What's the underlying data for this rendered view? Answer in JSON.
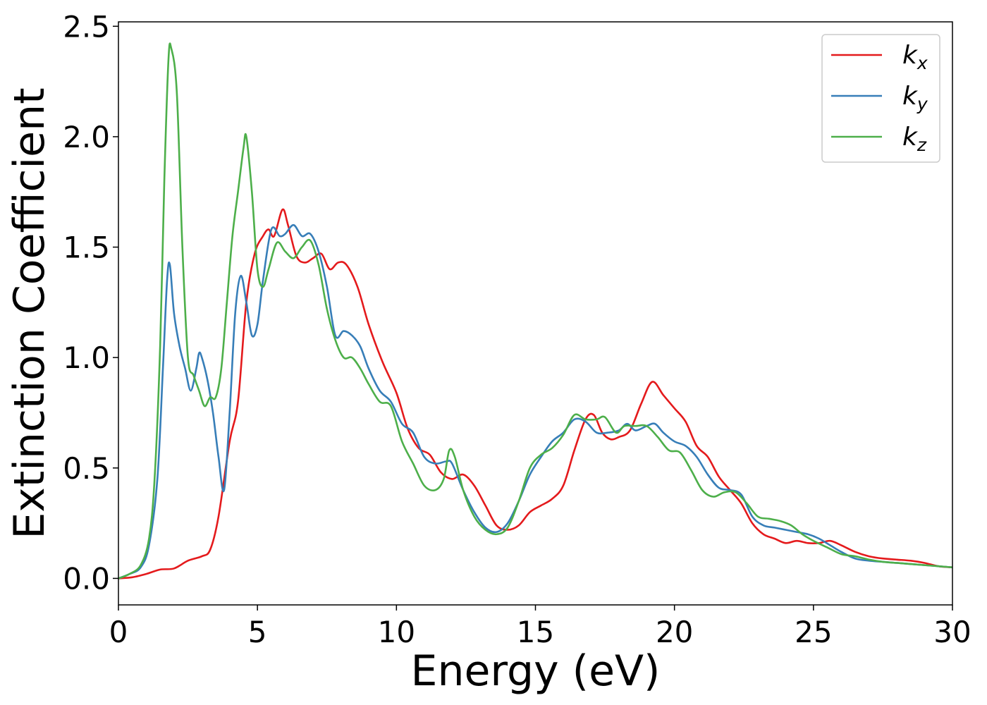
{
  "chart_data": {
    "type": "line",
    "title": "",
    "xlabel": "Energy (eV)",
    "ylabel": "Extinction Coefficient",
    "xlim": [
      0,
      30
    ],
    "ylim": [
      -0.12,
      2.52
    ],
    "x_ticks": [
      0,
      5,
      10,
      15,
      20,
      25,
      30
    ],
    "x_tick_labels": [
      "0",
      "5",
      "10",
      "15",
      "20",
      "25",
      "30"
    ],
    "y_ticks": [
      0.0,
      0.5,
      1.0,
      1.5,
      2.0,
      2.5
    ],
    "y_tick_labels": [
      "0.0",
      "0.5",
      "1.0",
      "1.5",
      "2.0",
      "2.5"
    ],
    "grid": false,
    "legend_position": "top-right",
    "series": [
      {
        "name": "k_x",
        "label_main": "k",
        "label_sub": "x",
        "color": "#e41a1c",
        "points": [
          [
            0,
            0
          ],
          [
            0.5,
            0.005
          ],
          [
            1.0,
            0.02
          ],
          [
            1.5,
            0.04
          ],
          [
            2.0,
            0.045
          ],
          [
            2.5,
            0.08
          ],
          [
            3.0,
            0.1
          ],
          [
            3.3,
            0.13
          ],
          [
            3.6,
            0.28
          ],
          [
            4.0,
            0.62
          ],
          [
            4.3,
            0.8
          ],
          [
            4.6,
            1.25
          ],
          [
            4.9,
            1.47
          ],
          [
            5.2,
            1.55
          ],
          [
            5.4,
            1.58
          ],
          [
            5.6,
            1.55
          ],
          [
            5.9,
            1.67
          ],
          [
            6.1,
            1.6
          ],
          [
            6.4,
            1.46
          ],
          [
            6.7,
            1.43
          ],
          [
            7.0,
            1.45
          ],
          [
            7.3,
            1.47
          ],
          [
            7.6,
            1.4
          ],
          [
            7.9,
            1.43
          ],
          [
            8.2,
            1.42
          ],
          [
            8.6,
            1.32
          ],
          [
            9.0,
            1.15
          ],
          [
            9.5,
            0.98
          ],
          [
            10.0,
            0.84
          ],
          [
            10.4,
            0.68
          ],
          [
            10.8,
            0.59
          ],
          [
            11.2,
            0.56
          ],
          [
            11.6,
            0.48
          ],
          [
            12.0,
            0.45
          ],
          [
            12.4,
            0.47
          ],
          [
            12.8,
            0.42
          ],
          [
            13.2,
            0.33
          ],
          [
            13.6,
            0.24
          ],
          [
            14.0,
            0.22
          ],
          [
            14.4,
            0.24
          ],
          [
            14.8,
            0.3
          ],
          [
            15.2,
            0.33
          ],
          [
            15.6,
            0.36
          ],
          [
            16.0,
            0.42
          ],
          [
            16.4,
            0.58
          ],
          [
            16.8,
            0.72
          ],
          [
            17.1,
            0.74
          ],
          [
            17.4,
            0.66
          ],
          [
            17.7,
            0.63
          ],
          [
            18.0,
            0.64
          ],
          [
            18.4,
            0.67
          ],
          [
            18.8,
            0.79
          ],
          [
            19.2,
            0.89
          ],
          [
            19.6,
            0.83
          ],
          [
            20.0,
            0.77
          ],
          [
            20.4,
            0.71
          ],
          [
            20.8,
            0.6
          ],
          [
            21.2,
            0.55
          ],
          [
            21.6,
            0.46
          ],
          [
            22.0,
            0.4
          ],
          [
            22.4,
            0.34
          ],
          [
            22.8,
            0.25
          ],
          [
            23.2,
            0.2
          ],
          [
            23.6,
            0.18
          ],
          [
            24.0,
            0.16
          ],
          [
            24.4,
            0.17
          ],
          [
            24.8,
            0.16
          ],
          [
            25.2,
            0.16
          ],
          [
            25.6,
            0.17
          ],
          [
            26.0,
            0.15
          ],
          [
            26.5,
            0.12
          ],
          [
            27.0,
            0.1
          ],
          [
            27.5,
            0.09
          ],
          [
            28.0,
            0.085
          ],
          [
            28.5,
            0.08
          ],
          [
            29.0,
            0.07
          ],
          [
            29.5,
            0.055
          ],
          [
            30.0,
            0.05
          ]
        ]
      },
      {
        "name": "k_y",
        "label_main": "k",
        "label_sub": "y",
        "color": "#377eb8",
        "points": [
          [
            0,
            0
          ],
          [
            0.4,
            0.02
          ],
          [
            0.8,
            0.05
          ],
          [
            1.1,
            0.15
          ],
          [
            1.4,
            0.45
          ],
          [
            1.6,
            0.95
          ],
          [
            1.75,
            1.35
          ],
          [
            1.85,
            1.42
          ],
          [
            2.0,
            1.2
          ],
          [
            2.2,
            1.05
          ],
          [
            2.4,
            0.95
          ],
          [
            2.6,
            0.85
          ],
          [
            2.8,
            0.95
          ],
          [
            2.9,
            1.02
          ],
          [
            3.0,
            1.0
          ],
          [
            3.2,
            0.9
          ],
          [
            3.4,
            0.75
          ],
          [
            3.6,
            0.55
          ],
          [
            3.8,
            0.4
          ],
          [
            4.0,
            0.75
          ],
          [
            4.2,
            1.2
          ],
          [
            4.4,
            1.37
          ],
          [
            4.6,
            1.25
          ],
          [
            4.8,
            1.1
          ],
          [
            5.0,
            1.15
          ],
          [
            5.2,
            1.35
          ],
          [
            5.5,
            1.58
          ],
          [
            5.8,
            1.55
          ],
          [
            6.0,
            1.56
          ],
          [
            6.3,
            1.6
          ],
          [
            6.6,
            1.55
          ],
          [
            6.9,
            1.56
          ],
          [
            7.2,
            1.48
          ],
          [
            7.5,
            1.32
          ],
          [
            7.8,
            1.1
          ],
          [
            8.1,
            1.12
          ],
          [
            8.4,
            1.1
          ],
          [
            8.7,
            1.05
          ],
          [
            9.0,
            0.95
          ],
          [
            9.4,
            0.85
          ],
          [
            9.8,
            0.8
          ],
          [
            10.2,
            0.7
          ],
          [
            10.6,
            0.66
          ],
          [
            11.0,
            0.55
          ],
          [
            11.4,
            0.52
          ],
          [
            11.8,
            0.53
          ],
          [
            12.0,
            0.52
          ],
          [
            12.4,
            0.4
          ],
          [
            12.8,
            0.3
          ],
          [
            13.2,
            0.23
          ],
          [
            13.6,
            0.21
          ],
          [
            14.0,
            0.25
          ],
          [
            14.4,
            0.35
          ],
          [
            14.8,
            0.47
          ],
          [
            15.2,
            0.55
          ],
          [
            15.6,
            0.62
          ],
          [
            16.0,
            0.66
          ],
          [
            16.4,
            0.72
          ],
          [
            16.8,
            0.71
          ],
          [
            17.2,
            0.66
          ],
          [
            17.6,
            0.66
          ],
          [
            18.0,
            0.67
          ],
          [
            18.3,
            0.7
          ],
          [
            18.6,
            0.67
          ],
          [
            19.0,
            0.69
          ],
          [
            19.3,
            0.7
          ],
          [
            19.6,
            0.66
          ],
          [
            20.0,
            0.62
          ],
          [
            20.4,
            0.6
          ],
          [
            20.8,
            0.55
          ],
          [
            21.2,
            0.47
          ],
          [
            21.6,
            0.41
          ],
          [
            22.0,
            0.4
          ],
          [
            22.4,
            0.38
          ],
          [
            22.8,
            0.28
          ],
          [
            23.2,
            0.24
          ],
          [
            23.6,
            0.23
          ],
          [
            24.0,
            0.22
          ],
          [
            24.4,
            0.21
          ],
          [
            24.8,
            0.2
          ],
          [
            25.2,
            0.18
          ],
          [
            25.6,
            0.15
          ],
          [
            26.0,
            0.12
          ],
          [
            26.5,
            0.09
          ],
          [
            27.0,
            0.08
          ],
          [
            27.5,
            0.075
          ],
          [
            28.0,
            0.07
          ],
          [
            28.5,
            0.065
          ],
          [
            29.0,
            0.06
          ],
          [
            29.5,
            0.055
          ],
          [
            30.0,
            0.05
          ]
        ]
      },
      {
        "name": "k_z",
        "label_main": "k",
        "label_sub": "z",
        "color": "#4daf4a",
        "points": [
          [
            0,
            0
          ],
          [
            0.4,
            0.02
          ],
          [
            0.8,
            0.06
          ],
          [
            1.1,
            0.18
          ],
          [
            1.3,
            0.45
          ],
          [
            1.5,
            1.05
          ],
          [
            1.65,
            1.8
          ],
          [
            1.8,
            2.35
          ],
          [
            1.9,
            2.4
          ],
          [
            2.1,
            2.2
          ],
          [
            2.3,
            1.5
          ],
          [
            2.5,
            1.0
          ],
          [
            2.7,
            0.92
          ],
          [
            2.9,
            0.85
          ],
          [
            3.1,
            0.78
          ],
          [
            3.3,
            0.82
          ],
          [
            3.5,
            0.82
          ],
          [
            3.7,
            0.95
          ],
          [
            3.9,
            1.25
          ],
          [
            4.1,
            1.55
          ],
          [
            4.3,
            1.75
          ],
          [
            4.5,
            1.95
          ],
          [
            4.6,
            2.0
          ],
          [
            4.8,
            1.75
          ],
          [
            5.0,
            1.4
          ],
          [
            5.2,
            1.32
          ],
          [
            5.4,
            1.4
          ],
          [
            5.7,
            1.52
          ],
          [
            6.0,
            1.48
          ],
          [
            6.3,
            1.45
          ],
          [
            6.6,
            1.5
          ],
          [
            6.9,
            1.53
          ],
          [
            7.2,
            1.42
          ],
          [
            7.5,
            1.22
          ],
          [
            7.8,
            1.08
          ],
          [
            8.1,
            1.0
          ],
          [
            8.4,
            1.0
          ],
          [
            8.7,
            0.95
          ],
          [
            9.0,
            0.88
          ],
          [
            9.4,
            0.8
          ],
          [
            9.8,
            0.78
          ],
          [
            10.2,
            0.62
          ],
          [
            10.6,
            0.52
          ],
          [
            11.0,
            0.42
          ],
          [
            11.4,
            0.4
          ],
          [
            11.7,
            0.45
          ],
          [
            11.9,
            0.58
          ],
          [
            12.1,
            0.55
          ],
          [
            12.4,
            0.4
          ],
          [
            12.8,
            0.28
          ],
          [
            13.2,
            0.22
          ],
          [
            13.6,
            0.2
          ],
          [
            14.0,
            0.23
          ],
          [
            14.4,
            0.35
          ],
          [
            14.8,
            0.5
          ],
          [
            15.2,
            0.56
          ],
          [
            15.6,
            0.59
          ],
          [
            16.0,
            0.65
          ],
          [
            16.4,
            0.74
          ],
          [
            16.8,
            0.72
          ],
          [
            17.2,
            0.72
          ],
          [
            17.5,
            0.73
          ],
          [
            17.9,
            0.66
          ],
          [
            18.2,
            0.69
          ],
          [
            18.6,
            0.69
          ],
          [
            19.0,
            0.69
          ],
          [
            19.4,
            0.64
          ],
          [
            19.8,
            0.58
          ],
          [
            20.2,
            0.57
          ],
          [
            20.6,
            0.49
          ],
          [
            21.0,
            0.4
          ],
          [
            21.4,
            0.37
          ],
          [
            21.8,
            0.39
          ],
          [
            22.2,
            0.39
          ],
          [
            22.6,
            0.34
          ],
          [
            23.0,
            0.28
          ],
          [
            23.4,
            0.27
          ],
          [
            23.8,
            0.26
          ],
          [
            24.2,
            0.24
          ],
          [
            24.6,
            0.2
          ],
          [
            25.0,
            0.17
          ],
          [
            25.5,
            0.14
          ],
          [
            26.0,
            0.11
          ],
          [
            26.5,
            0.1
          ],
          [
            27.0,
            0.085
          ],
          [
            27.5,
            0.075
          ],
          [
            28.0,
            0.07
          ],
          [
            28.5,
            0.065
          ],
          [
            29.0,
            0.06
          ],
          [
            29.5,
            0.055
          ],
          [
            30.0,
            0.05
          ]
        ]
      }
    ]
  }
}
